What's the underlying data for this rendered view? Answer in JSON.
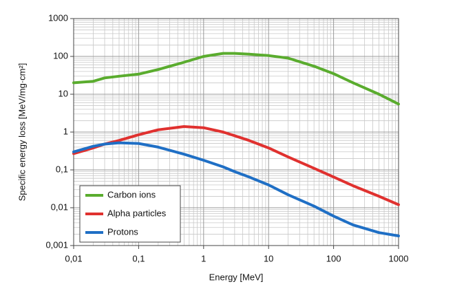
{
  "chart_data": {
    "type": "line",
    "x_label": "Energy [MeV]",
    "y_label": "Specific energy loss [MeV/mg·cm²]",
    "x": [
      0.01,
      0.02,
      0.03,
      0.05,
      0.1,
      0.2,
      0.5,
      1,
      2,
      3,
      5,
      10,
      20,
      50,
      100,
      200,
      500,
      1000
    ],
    "series": [
      {
        "name": "Carbon ions",
        "color": "#5aac2e",
        "values": [
          20,
          22,
          27,
          30,
          34,
          45,
          70,
          100,
          120,
          120,
          115,
          105,
          90,
          55,
          35,
          20,
          10,
          5.5
        ]
      },
      {
        "name": "Alpha particles",
        "color": "#e0312f",
        "values": [
          0.27,
          0.38,
          0.48,
          0.6,
          0.85,
          1.15,
          1.4,
          1.3,
          1.0,
          0.8,
          0.6,
          0.38,
          0.22,
          0.11,
          0.065,
          0.038,
          0.02,
          0.012
        ]
      },
      {
        "name": "Protons",
        "color": "#1f6fc5",
        "values": [
          0.3,
          0.42,
          0.48,
          0.52,
          0.5,
          0.4,
          0.26,
          0.18,
          0.12,
          0.09,
          0.065,
          0.04,
          0.022,
          0.011,
          0.006,
          0.0035,
          0.0022,
          0.0018
        ]
      }
    ],
    "xlog": true,
    "ylog": true,
    "xlim": [
      0.01,
      1000
    ],
    "ylim": [
      0.001,
      1000
    ],
    "xticks": [
      {
        "value": 0.01,
        "label": "0,01"
      },
      {
        "value": 0.1,
        "label": "0,1"
      },
      1,
      10,
      100,
      1000
    ],
    "yticks": [
      {
        "value": 0.001,
        "label": "0,001"
      },
      {
        "value": 0.01,
        "label": "0,01"
      },
      {
        "value": 0.1,
        "label": "0,1"
      },
      1,
      10,
      100,
      1000
    ],
    "grid": true,
    "legend": "lower left"
  }
}
